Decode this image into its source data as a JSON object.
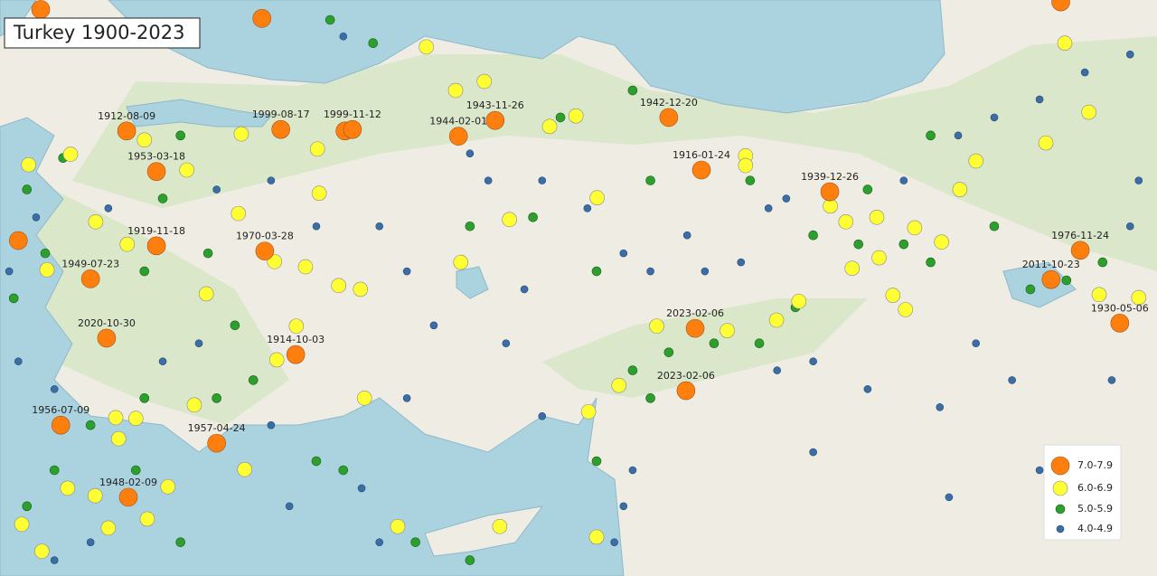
{
  "title": "Turkey 1900-2023",
  "classes": [
    {
      "label": "7.0-7.9",
      "color": "#ff7f0e",
      "labeled": [
        {
          "date": "1912-08-09",
          "lat": 40.4,
          "lon": 27.4
        },
        {
          "date": "1999-08-17",
          "lat": 40.42,
          "lon": 30.09
        },
        {
          "date": "1999-11-12",
          "lat": 40.42,
          "lon": 31.34
        },
        {
          "date": "1943-11-26",
          "lat": 40.54,
          "lon": 33.83
        },
        {
          "date": "1944-02-01",
          "lat": 40.33,
          "lon": 33.19
        },
        {
          "date": "1942-12-20",
          "lat": 40.58,
          "lon": 36.86
        },
        {
          "date": "1916-01-24",
          "lat": 39.88,
          "lon": 37.43
        },
        {
          "date": "1939-12-26",
          "lat": 39.59,
          "lon": 39.67
        },
        {
          "date": "1953-03-18",
          "lat": 39.86,
          "lon": 27.92
        },
        {
          "date": "1919-11-18",
          "lat": 38.87,
          "lon": 27.92
        },
        {
          "date": "1970-03-28",
          "lat": 38.8,
          "lon": 29.81
        },
        {
          "date": "1949-07-23",
          "lat": 38.43,
          "lon": 26.77
        },
        {
          "date": "2020-10-30",
          "lat": 37.64,
          "lon": 27.05
        },
        {
          "date": "1914-10-03",
          "lat": 37.42,
          "lon": 30.35
        },
        {
          "date": "1956-07-09",
          "lat": 36.48,
          "lon": 26.25
        },
        {
          "date": "1957-04-24",
          "lat": 36.24,
          "lon": 28.97
        },
        {
          "date": "1948-02-09",
          "lat": 35.52,
          "lon": 27.43
        },
        {
          "date": "2023-02-06",
          "lat": 37.77,
          "lon": 37.32
        },
        {
          "date": "2023-02-06",
          "lat": 36.94,
          "lon": 37.16
        },
        {
          "date": "1976-11-24",
          "lat": 38.81,
          "lon": 44.04
        },
        {
          "date": "2011-10-23",
          "lat": 38.42,
          "lon": 43.53
        },
        {
          "date": "1930-05-06",
          "lat": 37.84,
          "lon": 44.73
        }
      ],
      "points": [
        [
          42.02,
          25.9
        ],
        [
          38.94,
          25.51
        ],
        [
          42.12,
          43.7
        ],
        [
          41.9,
          29.76
        ],
        [
          40.4,
          31.21
        ]
      ]
    },
    {
      "label": "6.0-6.9",
      "color": "#ffff33",
      "points": [
        [
          41.52,
          32.63
        ],
        [
          41.06,
          33.64
        ],
        [
          40.94,
          33.14
        ],
        [
          40.6,
          35.24
        ],
        [
          40.46,
          34.78
        ],
        [
          40.28,
          27.71
        ],
        [
          40.09,
          26.42
        ],
        [
          39.95,
          25.69
        ],
        [
          40.36,
          29.4
        ],
        [
          40.16,
          30.73
        ],
        [
          39.88,
          28.45
        ],
        [
          39.57,
          30.76
        ],
        [
          40.07,
          38.2
        ],
        [
          39.94,
          38.2
        ],
        [
          39.51,
          35.61
        ],
        [
          39.22,
          34.08
        ],
        [
          39.4,
          39.68
        ],
        [
          39.19,
          39.95
        ],
        [
          39.25,
          40.49
        ],
        [
          39.11,
          41.15
        ],
        [
          38.92,
          41.62
        ],
        [
          38.71,
          40.53
        ],
        [
          38.57,
          40.06
        ],
        [
          39.62,
          41.94
        ],
        [
          40.0,
          42.22
        ],
        [
          40.24,
          43.44
        ],
        [
          40.65,
          44.19
        ],
        [
          41.57,
          43.77
        ],
        [
          39.19,
          26.86
        ],
        [
          38.89,
          27.41
        ],
        [
          38.55,
          26.01
        ],
        [
          39.3,
          29.35
        ],
        [
          38.66,
          29.98
        ],
        [
          38.59,
          30.52
        ],
        [
          38.23,
          28.79
        ],
        [
          38.34,
          31.1
        ],
        [
          38.29,
          31.48
        ],
        [
          38.65,
          33.23
        ],
        [
          37.8,
          30.36
        ],
        [
          37.35,
          30.02
        ],
        [
          36.84,
          31.55
        ],
        [
          36.75,
          28.58
        ],
        [
          36.58,
          27.21
        ],
        [
          36.57,
          27.56
        ],
        [
          36.3,
          27.26
        ],
        [
          35.64,
          26.37
        ],
        [
          35.54,
          26.85
        ],
        [
          35.23,
          27.76
        ],
        [
          35.11,
          27.08
        ],
        [
          35.16,
          25.57
        ],
        [
          34.8,
          25.92
        ],
        [
          35.89,
          29.46
        ],
        [
          35.66,
          28.12
        ],
        [
          35.13,
          32.13
        ],
        [
          35.13,
          33.91
        ],
        [
          34.99,
          35.6
        ],
        [
          37.01,
          35.99
        ],
        [
          36.66,
          35.46
        ],
        [
          37.8,
          36.65
        ],
        [
          37.74,
          37.88
        ],
        [
          37.88,
          38.74
        ],
        [
          38.13,
          39.13
        ],
        [
          38.21,
          40.77
        ],
        [
          38.02,
          40.99
        ],
        [
          38.22,
          44.37
        ],
        [
          38.18,
          45.06
        ]
      ]
    },
    {
      "label": "5.0-5.9",
      "color": "#2ca02c",
      "points": [
        [
          41.88,
          30.95
        ],
        [
          41.57,
          31.7
        ],
        [
          40.34,
          28.34
        ],
        [
          40.04,
          26.29
        ],
        [
          39.62,
          25.66
        ],
        [
          38.77,
          25.98
        ],
        [
          38.17,
          25.43
        ],
        [
          39.5,
          28.03
        ],
        [
          38.53,
          27.71
        ],
        [
          38.77,
          28.82
        ],
        [
          37.81,
          29.29
        ],
        [
          37.08,
          29.61
        ],
        [
          36.84,
          27.71
        ],
        [
          36.84,
          28.97
        ],
        [
          36.48,
          26.77
        ],
        [
          35.88,
          26.14
        ],
        [
          35.4,
          25.66
        ],
        [
          35.88,
          27.56
        ],
        [
          34.92,
          28.34
        ],
        [
          36.0,
          30.71
        ],
        [
          35.88,
          31.18
        ],
        [
          34.92,
          32.44
        ],
        [
          34.68,
          33.39
        ],
        [
          40.58,
          34.97
        ],
        [
          40.94,
          36.23
        ],
        [
          39.74,
          36.54
        ],
        [
          39.74,
          38.28
        ],
        [
          39.01,
          39.38
        ],
        [
          38.89,
          40.17
        ],
        [
          38.89,
          40.96
        ],
        [
          38.65,
          41.43
        ],
        [
          39.62,
          40.33
        ],
        [
          38.05,
          39.07
        ],
        [
          37.57,
          38.44
        ],
        [
          37.57,
          37.65
        ],
        [
          37.45,
          36.86
        ],
        [
          37.21,
          36.23
        ],
        [
          36.84,
          36.54
        ],
        [
          36.0,
          35.6
        ],
        [
          38.29,
          43.17
        ],
        [
          38.41,
          43.8
        ],
        [
          38.65,
          44.43
        ],
        [
          39.13,
          42.54
        ],
        [
          40.34,
          41.43
        ],
        [
          38.53,
          35.6
        ],
        [
          39.25,
          34.49
        ],
        [
          39.13,
          33.39
        ]
      ]
    },
    {
      "label": "4.0-4.9",
      "color": "#3a6ea5",
      "points": [
        [
          41.66,
          31.18
        ],
        [
          40.1,
          33.39
        ],
        [
          39.74,
          33.71
        ],
        [
          39.74,
          34.65
        ],
        [
          38.29,
          34.34
        ],
        [
          39.37,
          35.44
        ],
        [
          38.77,
          36.07
        ],
        [
          38.53,
          36.54
        ],
        [
          39.01,
          37.18
        ],
        [
          38.53,
          37.49
        ],
        [
          38.65,
          38.12
        ],
        [
          39.37,
          38.6
        ],
        [
          39.5,
          38.91
        ],
        [
          39.74,
          40.96
        ],
        [
          40.34,
          41.91
        ],
        [
          40.58,
          42.54
        ],
        [
          40.82,
          43.33
        ],
        [
          41.18,
          44.12
        ],
        [
          41.42,
          44.91
        ],
        [
          39.74,
          45.06
        ],
        [
          39.13,
          44.91
        ],
        [
          37.08,
          44.59
        ],
        [
          37.08,
          42.85
        ],
        [
          37.57,
          42.22
        ],
        [
          36.72,
          41.59
        ],
        [
          36.96,
          40.33
        ],
        [
          37.33,
          39.38
        ],
        [
          37.21,
          38.75
        ],
        [
          35.88,
          36.23
        ],
        [
          35.4,
          36.07
        ],
        [
          34.92,
          35.91
        ],
        [
          36.6,
          34.65
        ],
        [
          37.57,
          34.02
        ],
        [
          37.81,
          32.76
        ],
        [
          38.53,
          32.29
        ],
        [
          39.13,
          31.81
        ],
        [
          39.13,
          30.71
        ],
        [
          39.74,
          29.92
        ],
        [
          39.62,
          28.97
        ],
        [
          39.37,
          27.08
        ],
        [
          39.25,
          25.82
        ],
        [
          38.53,
          25.35
        ],
        [
          37.33,
          25.51
        ],
        [
          36.96,
          26.14
        ],
        [
          37.33,
          28.03
        ],
        [
          37.57,
          28.66
        ],
        [
          36.48,
          29.92
        ],
        [
          35.4,
          30.24
        ],
        [
          35.64,
          31.5
        ],
        [
          34.92,
          31.81
        ],
        [
          34.92,
          26.77
        ],
        [
          34.68,
          26.14
        ],
        [
          36.84,
          32.29
        ],
        [
          36.12,
          39.38
        ],
        [
          35.52,
          41.75
        ],
        [
          35.88,
          43.33
        ]
      ]
    }
  ]
}
